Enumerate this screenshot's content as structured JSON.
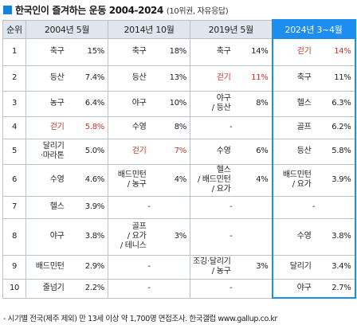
{
  "header": {
    "title": "한국인이 즐겨하는 운동 2004-2024",
    "subtitle": "(10위권, 자유응답)"
  },
  "chart_data": {
    "type": "table",
    "columns": [
      {
        "label": "순위"
      },
      {
        "label": "2004년 5월"
      },
      {
        "label": "2014년 10월"
      },
      {
        "label": "2019년 5월"
      },
      {
        "label": "2024년 3~4월",
        "highlight": true
      }
    ],
    "rows": [
      {
        "rank": "1",
        "height": 34,
        "cells": [
          {
            "sport": "축구",
            "pct": "15%"
          },
          {
            "sport": "축구",
            "pct": "18%"
          },
          {
            "sport": "축구",
            "pct": "14%"
          },
          {
            "sport": "걷기",
            "pct": "14%",
            "red": true
          }
        ]
      },
      {
        "rank": "2",
        "height": 32,
        "cells": [
          {
            "sport": "등산",
            "pct": "7.4%"
          },
          {
            "sport": "등산",
            "pct": "13%"
          },
          {
            "sport": "걷기",
            "pct": "11%",
            "red": true
          },
          {
            "sport": "축구",
            "pct": "11%"
          }
        ]
      },
      {
        "rank": "3",
        "height": 32,
        "cells": [
          {
            "sport": "농구",
            "pct": "6.4%"
          },
          {
            "sport": "야구",
            "pct": "10%"
          },
          {
            "sport": "야구\n/ 등산",
            "pct": "8%"
          },
          {
            "sport": "헬스",
            "pct": "6.3%"
          }
        ]
      },
      {
        "rank": "4",
        "height": 28,
        "cells": [
          {
            "sport": "걷기",
            "pct": "5.8%",
            "red": true
          },
          {
            "sport": "수영",
            "pct": "8%"
          },
          {
            "sport": "",
            "pct": "-"
          },
          {
            "sport": "골프",
            "pct": "6.2%"
          }
        ]
      },
      {
        "rank": "5",
        "height": 32,
        "cells": [
          {
            "sport": "달리기\n·마라톤",
            "pct": "5.0%"
          },
          {
            "sport": "걷기",
            "pct": "7%",
            "red": true
          },
          {
            "sport": "수영",
            "pct": "6%"
          },
          {
            "sport": "등산",
            "pct": "5.8%"
          }
        ]
      },
      {
        "rank": "6",
        "height": 40,
        "cells": [
          {
            "sport": "수영",
            "pct": "4.6%"
          },
          {
            "sport": "배드민턴\n/ 농구",
            "pct": "4%"
          },
          {
            "sport": "헬스\n/ 배드민턴\n/ 요가",
            "pct": "4%"
          },
          {
            "sport": "배드민턴\n/ 요가",
            "pct": "3.9%"
          }
        ]
      },
      {
        "rank": "7",
        "height": 28,
        "cells": [
          {
            "sport": "헬스",
            "pct": "3.9%"
          },
          {
            "sport": "",
            "pct": "-"
          },
          {
            "sport": "",
            "pct": "-"
          },
          {
            "sport": "",
            "pct": "-"
          }
        ]
      },
      {
        "rank": "8",
        "height": 46,
        "cells": [
          {
            "sport": "야구",
            "pct": "3.8%"
          },
          {
            "sport": "골프\n/ 요가\n/ 테니스",
            "pct": "3%"
          },
          {
            "sport": "",
            "pct": "-"
          },
          {
            "sport": "수영",
            "pct": "3.8%"
          }
        ]
      },
      {
        "rank": "9",
        "height": 30,
        "cells": [
          {
            "sport": "배드민턴",
            "pct": "2.9%"
          },
          {
            "sport": "",
            "pct": "-"
          },
          {
            "sport": "조깅·달리기\n/ 농구",
            "pct": "3%"
          },
          {
            "sport": "달리기",
            "pct": "3.4%"
          }
        ]
      },
      {
        "rank": "10",
        "height": 24,
        "cells": [
          {
            "sport": "줄넘기",
            "pct": "2.2%"
          },
          {
            "sport": "",
            "pct": "-"
          },
          {
            "sport": "",
            "pct": "-"
          },
          {
            "sport": "야구",
            "pct": "2.7%"
          }
        ]
      }
    ]
  },
  "footer": {
    "note": "- 시기별 전국(제주 제외) 만 13세 이상 약 1,700명 면접조사. 한국갤럽 www.gallup.co.kr"
  },
  "colors": {
    "accent": "#1d8ef0",
    "header_bg": "#dfe6ee",
    "highlight_text": "#c0392b"
  }
}
